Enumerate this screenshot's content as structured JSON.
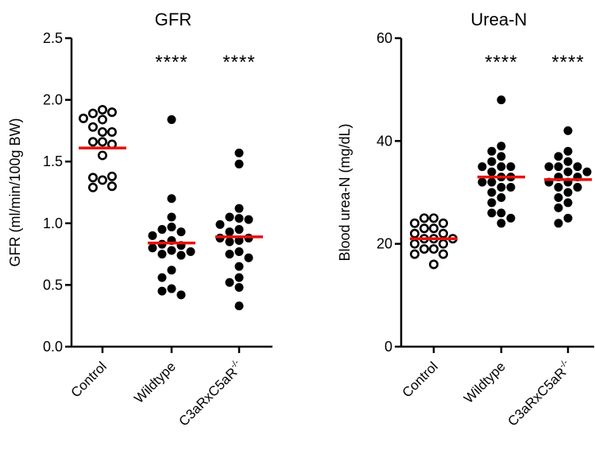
{
  "colors": {
    "mean_line": "#e8100b",
    "marker": "#000000",
    "open_fill": "#ffffff"
  },
  "chart_data": [
    {
      "type": "scatter",
      "title": "GFR",
      "xlabel": "",
      "ylabel": "GFR (ml/min/100g BW)",
      "ylim": [
        0,
        2.5
      ],
      "yticks": [
        "0.0",
        "0.5",
        "1.0",
        "1.5",
        "2.0",
        "2.5"
      ],
      "categories": [
        "Control",
        "Wildtype",
        "C3aRxC5aR",
        "-/-"
      ],
      "series": [
        {
          "category": "Control",
          "marker": "open",
          "mean": 1.61,
          "values": [
            1.92,
            1.89,
            1.9,
            1.84,
            1.85,
            1.78,
            1.74,
            1.74,
            1.66,
            1.66,
            1.64,
            1.55,
            1.35,
            1.37,
            1.3,
            1.29,
            1.38
          ]
        },
        {
          "category": "Wildtype",
          "marker": "filled",
          "mean": 0.84,
          "values": [
            1.84,
            1.2,
            1.05,
            0.97,
            0.95,
            0.93,
            0.9,
            0.86,
            0.83,
            0.82,
            0.8,
            0.78,
            0.77,
            0.75,
            0.74,
            0.62,
            0.56,
            0.47,
            0.45,
            0.42
          ]
        },
        {
          "category": "C3aRxC5aR-/-",
          "marker": "filled",
          "mean": 0.89,
          "values": [
            1.57,
            1.48,
            1.12,
            1.05,
            1.04,
            1.03,
            0.99,
            0.95,
            0.93,
            0.88,
            0.88,
            0.86,
            0.85,
            0.77,
            0.75,
            0.72,
            0.65,
            0.56,
            0.52,
            0.48,
            0.33
          ]
        }
      ],
      "significance": [
        "",
        "****",
        "****"
      ]
    },
    {
      "type": "scatter",
      "title": "Urea-N",
      "xlabel": "",
      "ylabel": "Blood urea-N (mg/dL)",
      "ylim": [
        0,
        60
      ],
      "yticks": [
        "0",
        "20",
        "40",
        "60"
      ],
      "categories": [
        "Control",
        "Wildtype",
        "C3aRxC5aR",
        "-/-"
      ],
      "series": [
        {
          "category": "Control",
          "marker": "open",
          "mean": 21,
          "values": [
            25,
            25,
            24,
            24,
            23,
            23,
            22,
            22,
            21,
            21,
            21,
            20,
            20,
            19,
            19,
            18,
            18,
            16
          ]
        },
        {
          "category": "Wildtype",
          "marker": "filled",
          "mean": 33,
          "values": [
            48,
            39,
            38,
            37,
            36,
            35,
            35,
            35,
            34,
            33,
            33,
            32,
            32,
            31,
            31,
            30,
            29,
            28,
            26,
            26,
            25,
            24
          ]
        },
        {
          "category": "C3aRxC5aR-/-",
          "marker": "filled",
          "mean": 32.5,
          "values": [
            42,
            38,
            37,
            36,
            35,
            35,
            35,
            34,
            34,
            33,
            33,
            32,
            32,
            31,
            31,
            30,
            29,
            28,
            27,
            25,
            24
          ]
        }
      ],
      "significance": [
        "",
        "****",
        "****"
      ]
    }
  ]
}
